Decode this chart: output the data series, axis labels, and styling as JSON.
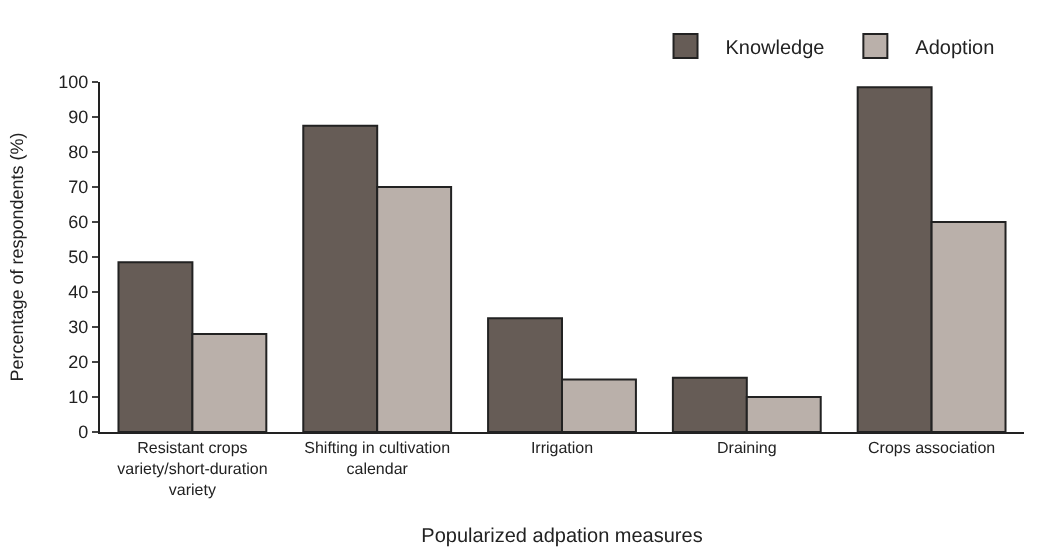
{
  "chart_data": {
    "type": "bar",
    "xlabel": "Popularized adpation measures",
    "ylabel": "Percentage of respondents (%)",
    "categories": [
      "Resistant crops\nvariety/short-duration\nvariety",
      "Shifting in cultivation\ncalendar",
      "Irrigation",
      "Draining",
      "Crops association"
    ],
    "series": [
      {
        "name": "Knowledge",
        "color": "#665c56",
        "values": [
          48.5,
          87.5,
          32.5,
          15.5,
          98.5
        ]
      },
      {
        "name": "Adoption",
        "color": "#bab0aa",
        "values": [
          28,
          70,
          15,
          10,
          60
        ]
      }
    ],
    "ylim": [
      0,
      100
    ],
    "yticks": [
      0,
      10,
      20,
      30,
      40,
      50,
      60,
      70,
      80,
      90,
      100
    ],
    "legend": "top right"
  }
}
